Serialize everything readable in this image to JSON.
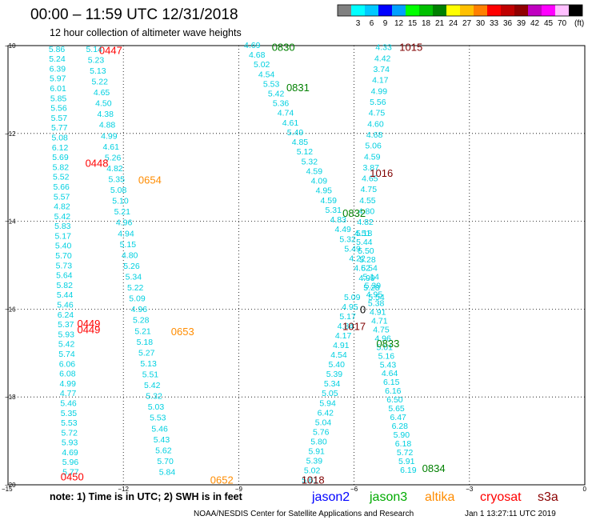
{
  "header": {
    "title": "00:00 – 11:59 UTC 12/31/2018",
    "subtitle": "12 hour collection of altimeter wave heights"
  },
  "colorbar": {
    "colors": [
      "#808080",
      "#00ffff",
      "#00c8ff",
      "#0000ff",
      "#00a0ff",
      "#00ff00",
      "#00c000",
      "#008000",
      "#ffff00",
      "#ffc000",
      "#ff8000",
      "#ff0000",
      "#c00000",
      "#900000",
      "#c000c0",
      "#ff00ff",
      "#ffbfff",
      "#000000"
    ],
    "labels": [
      "3",
      "6",
      "9",
      "12",
      "15",
      "18",
      "21",
      "24",
      "27",
      "30",
      "33",
      "36",
      "39",
      "42",
      "45",
      "70"
    ],
    "unit": "(ft)"
  },
  "footer": {
    "note": "note:  1) Time is in UTC; 2) SWH is in feet",
    "legend": [
      {
        "name": "jason2",
        "color": "#0000ff"
      },
      {
        "name": "jason3",
        "color": "#00aa00"
      },
      {
        "name": "altika",
        "color": "#ff8c00"
      },
      {
        "name": "cryosat",
        "color": "#ff0000"
      },
      {
        "name": "s3a",
        "color": "#8b0000"
      }
    ],
    "credit": "NOAA/NESDIS Center for Satellite Applications and Research",
    "timestamp": "Jan  1 13:27:11 UTC 2019"
  },
  "chart_data": {
    "type": "scatter",
    "xlim": [
      -15,
      0
    ],
    "ylim": [
      -20,
      -10
    ],
    "x_ticks": [
      -15,
      -12,
      -9,
      -6,
      -3,
      0
    ],
    "x_tick_labels": [
      "−15",
      "−12",
      "−9",
      "−6",
      "−3",
      "0"
    ],
    "y_ticks": [
      -10,
      -12,
      -14,
      -16,
      -18,
      -20
    ],
    "y_tick_labels": [
      "−10",
      "−12",
      "−14",
      "−16",
      "−18",
      "−20"
    ],
    "grid": true,
    "point_color": "#00d0e0",
    "time_labels": [
      {
        "text": "0447",
        "x": -12.33,
        "y": -10.1,
        "color": "#ff0000"
      },
      {
        "text": "0448",
        "x": -12.69,
        "y": -12.67,
        "color": "#ff0000"
      },
      {
        "text": "0449",
        "x": -12.9,
        "y": -16.32,
        "color": "#ff0000"
      },
      {
        "text": "0449",
        "x": -12.9,
        "y": -16.46,
        "color": "#ff0000"
      },
      {
        "text": "0450",
        "x": -13.33,
        "y": -19.81,
        "color": "#ff0000"
      },
      {
        "text": "0654",
        "x": -11.31,
        "y": -13.05,
        "color": "#ff8c00"
      },
      {
        "text": "0653",
        "x": -10.46,
        "y": -16.5,
        "color": "#ff8c00"
      },
      {
        "text": "0652",
        "x": -9.44,
        "y": -19.88,
        "color": "#ff8c00"
      },
      {
        "text": "0830",
        "x": -7.84,
        "y": -10.03,
        "color": "#008000"
      },
      {
        "text": "0831",
        "x": -7.46,
        "y": -10.95,
        "color": "#008000"
      },
      {
        "text": "0832",
        "x": -6.0,
        "y": -13.81,
        "color": "#008000"
      },
      {
        "text": "0833",
        "x": -5.12,
        "y": -16.78,
        "color": "#008000"
      },
      {
        "text": "0834",
        "x": -3.93,
        "y": -19.62,
        "color": "#008000"
      },
      {
        "text": "1015",
        "x": -4.52,
        "y": -10.03,
        "color": "#800000"
      },
      {
        "text": "1016",
        "x": -5.29,
        "y": -12.9,
        "color": "#800000"
      },
      {
        "text": "1017",
        "x": -6.0,
        "y": -16.38,
        "color": "#800000"
      },
      {
        "text": "1018",
        "x": -7.07,
        "y": -19.88,
        "color": "#800000"
      },
      {
        "text": "0",
        "x": -5.77,
        "y": -16.0,
        "color": "#000000"
      }
    ],
    "tracks": [
      {
        "x_start": -13.73,
        "x_end": -13.37,
        "y_start": -10.07,
        "y_end": -19.7,
        "values": [
          "5.86",
          "5.24",
          "6.39",
          "5.97",
          "6.01",
          "5.85",
          "5.56",
          "5.57",
          "5.77",
          "5.08",
          "6.12",
          "5.69",
          "5.82",
          "5.52",
          "5.66",
          "5.57",
          "4.82",
          "5.42",
          "5.83",
          "5.17",
          "5.40",
          "5.70",
          "5.73",
          "5.64",
          "5.82",
          "5.44",
          "5.46",
          "6.24",
          "5.37",
          "5.93",
          "5.42",
          "5.74",
          "6.06",
          "6.08",
          "4.99",
          "4.77",
          "5.46",
          "5.35",
          "5.53",
          "5.72",
          "5.93",
          "4.69",
          "5.96",
          "5.77"
        ]
      },
      {
        "x_start": -12.76,
        "x_end": -10.86,
        "y_start": -10.07,
        "y_end": -19.7,
        "values": [
          "5.14",
          "5.23",
          "5.13",
          "5.22",
          "4.65",
          "4.50",
          "4.38",
          "4.88",
          "4.99",
          "4.61",
          "5.26",
          "4.82",
          "5.35",
          "5.08",
          "5.10",
          "5.21",
          "4.96",
          "4.94",
          "5.15",
          "4.80",
          "5.26",
          "5.34",
          "5.22",
          "5.09",
          "4.96",
          "5.28",
          "5.21",
          "5.18",
          "5.27",
          "5.13",
          "5.51",
          "5.42",
          "5.32",
          "5.03",
          "5.53",
          "5.46",
          "5.43",
          "5.62",
          "5.70",
          "5.84"
        ]
      },
      {
        "x_start": -8.65,
        "x_end": -5.42,
        "y_start": -9.98,
        "y_end": -15.72,
        "values": [
          "4.69",
          "4.68",
          "5.02",
          "4.54",
          "5.53",
          "5.42",
          "5.36",
          "4.74",
          "4.61",
          "5.49",
          "4.85",
          "5.12",
          "5.32",
          "4.59",
          "4.09",
          "4.95",
          "4.59",
          "5.31",
          "4.83",
          "4.49",
          "5.32",
          "5.49",
          "4.22",
          "4.62",
          "4.99",
          "5.28",
          "5.54"
        ]
      },
      {
        "x_start": -6.05,
        "x_end": -7.15,
        "y_start": -15.72,
        "y_end": -19.88,
        "values": [
          "5.09",
          "4.95",
          "5.17",
          "4.84",
          "4.17",
          "4.91",
          "4.54",
          "5.40",
          "5.39",
          "5.34",
          "5.05",
          "5.94",
          "6.42",
          "5.04",
          "5.76",
          "5.80",
          "5.91",
          "5.39",
          "5.02",
          "5.61"
        ]
      },
      {
        "x_start": -5.23,
        "x_end": -5.74,
        "y_start": -10.03,
        "y_end": -14.26,
        "values": [
          "4.33",
          "4.42",
          "3.74",
          "4.17",
          "4.99",
          "5.56",
          "4.75",
          "4.60",
          "4.68",
          "5.06",
          "4.59",
          "3.87",
          "4.65",
          "4.75",
          "4.55",
          "4.80",
          "4.82",
          "5.18"
        ]
      },
      {
        "x_start": -5.78,
        "x_end": -4.59,
        "y_start": -14.26,
        "y_end": -19.65,
        "values": [
          "4.51",
          "5.44",
          "5.50",
          "5.28",
          "5.54",
          "5.14",
          "5.39",
          "4.95",
          "5.38",
          "4.91",
          "4.71",
          "4.75",
          "4.96",
          "5.01",
          "5.16",
          "5.43",
          "4.64",
          "6.15",
          "6.16",
          "6.50",
          "5.65",
          "6.47",
          "6.28",
          "5.90",
          "6.18",
          "5.72",
          "5.91",
          "6.19"
        ]
      }
    ]
  }
}
